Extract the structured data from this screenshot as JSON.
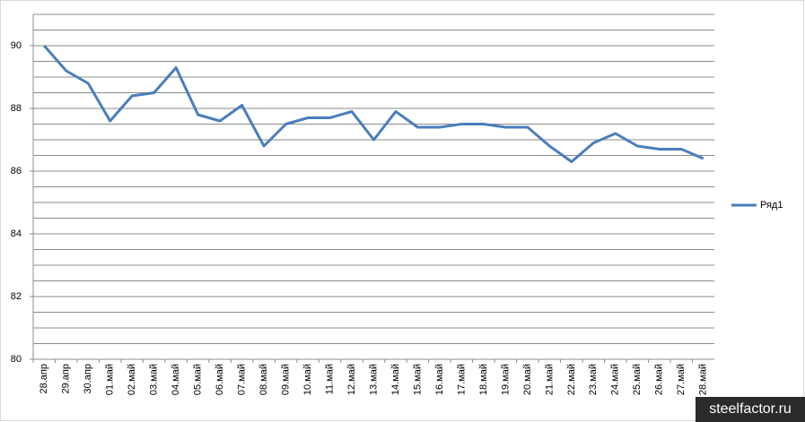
{
  "chart_data": {
    "type": "line",
    "categories": [
      "28.апр",
      "29.апр",
      "30.апр",
      "01.май",
      "02.май",
      "03.май",
      "04.май",
      "05.май",
      "06.май",
      "07.май",
      "08.май",
      "09.май",
      "10.май",
      "11.май",
      "12.май",
      "13.май",
      "14.май",
      "15.май",
      "16.май",
      "17.май",
      "18.май",
      "19.май",
      "20.май",
      "21.май",
      "22.май",
      "23.май",
      "24.май",
      "25.май",
      "26.май",
      "27.май",
      "28.май"
    ],
    "series": [
      {
        "name": "Ряд1",
        "color": "#4a7ebb",
        "values": [
          90.0,
          89.2,
          88.8,
          87.6,
          88.4,
          88.5,
          89.3,
          87.8,
          87.6,
          88.1,
          86.8,
          87.5,
          87.7,
          87.7,
          87.9,
          87.0,
          87.9,
          87.4,
          87.4,
          87.5,
          87.5,
          87.4,
          87.4,
          86.8,
          86.3,
          86.9,
          87.2,
          86.8,
          86.7,
          86.7,
          86.4
        ]
      }
    ],
    "ylim": [
      80,
      91
    ],
    "yticks": [
      80,
      82,
      84,
      86,
      88,
      90
    ],
    "ygridlines": [
      80.5,
      81,
      81.5,
      82,
      82.5,
      83,
      83.5,
      84,
      84.5,
      85,
      85.5,
      86,
      86.5,
      87,
      87.5,
      88,
      88.5,
      89,
      89.5,
      90,
      90.5,
      91
    ],
    "legend": "right"
  },
  "watermark": "steelfactor.ru"
}
